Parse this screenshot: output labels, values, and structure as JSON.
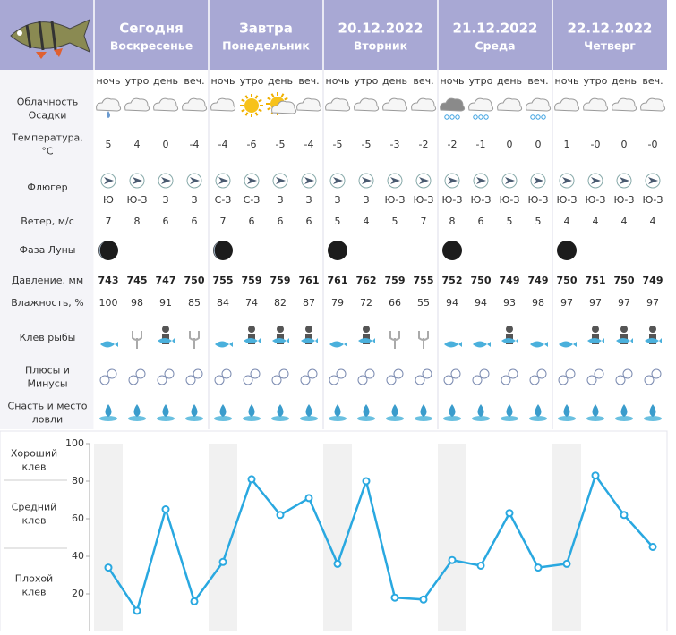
{
  "days": [
    {
      "title": "Сегодня",
      "subtitle": "Воскресенье",
      "times": [
        "ночь",
        "утро",
        "день",
        "веч."
      ]
    },
    {
      "title": "Завтра",
      "subtitle": "Понедельник",
      "times": [
        "ночь",
        "утро",
        "день",
        "веч."
      ]
    },
    {
      "title": "20.12.2022",
      "subtitle": "Вторник",
      "times": [
        "ночь",
        "утро",
        "день",
        "веч."
      ]
    },
    {
      "title": "21.12.2022",
      "subtitle": "Среда",
      "times": [
        "ночь",
        "утро",
        "день",
        "веч."
      ]
    },
    {
      "title": "22.12.2022",
      "subtitle": "Четверг",
      "times": [
        "ночь",
        "утро",
        "день",
        "веч."
      ]
    }
  ],
  "row_labels": [
    [
      "Облачность",
      "Осадки"
    ],
    [
      "Температура,",
      "°С"
    ],
    [
      "Флюгер"
    ],
    [
      "Ветер, м/с"
    ],
    [
      "Фаза Луны"
    ],
    [
      "Давление, мм"
    ],
    [
      "Влажность, %"
    ],
    [
      "Клев рыбы"
    ],
    [
      "Плюсы и",
      "Минусы"
    ],
    [
      "Снасть и место",
      "ловли"
    ]
  ],
  "temperature": [
    "5",
    "4",
    "0",
    "-4",
    "-4",
    "-6",
    "-5",
    "-4",
    "-5",
    "-5",
    "-3",
    "-2",
    "-2",
    "-1",
    "0",
    "0",
    "1",
    "-0",
    "0",
    "-0"
  ],
  "wind_direction": [
    "Ю",
    "Ю-З",
    "З",
    "З",
    "С-З",
    "С-З",
    "З",
    "З",
    "З",
    "З",
    "Ю-З",
    "Ю-З",
    "Ю-З",
    "Ю-З",
    "Ю-З",
    "Ю-З",
    "Ю-З",
    "Ю-З",
    "Ю-З",
    "Ю-З"
  ],
  "wind_speed": [
    7,
    8,
    6,
    6,
    7,
    6,
    6,
    6,
    5,
    4,
    5,
    7,
    8,
    6,
    5,
    5,
    4,
    4,
    4,
    4
  ],
  "pressure": [
    743,
    745,
    747,
    750,
    755,
    759,
    759,
    761,
    761,
    762,
    759,
    755,
    752,
    750,
    749,
    749,
    750,
    751,
    750,
    749
  ],
  "humidity": [
    100,
    98,
    91,
    85,
    84,
    74,
    82,
    87,
    79,
    72,
    66,
    55,
    94,
    94,
    93,
    98,
    97,
    97,
    97,
    97
  ],
  "chart": {
    "type": "line",
    "color": "#29a8e0",
    "ylim": [
      0,
      100
    ],
    "yticks": [
      20,
      40,
      60,
      80,
      100
    ],
    "values": [
      34,
      11,
      65,
      16,
      37,
      81,
      62,
      71,
      36,
      80,
      18,
      17,
      38,
      35,
      63,
      34,
      36,
      83,
      62,
      45
    ],
    "zones": [
      [
        "Хороший",
        "клев"
      ],
      [
        "Средний",
        "клев"
      ],
      [
        "Плохой",
        "клев"
      ]
    ]
  }
}
